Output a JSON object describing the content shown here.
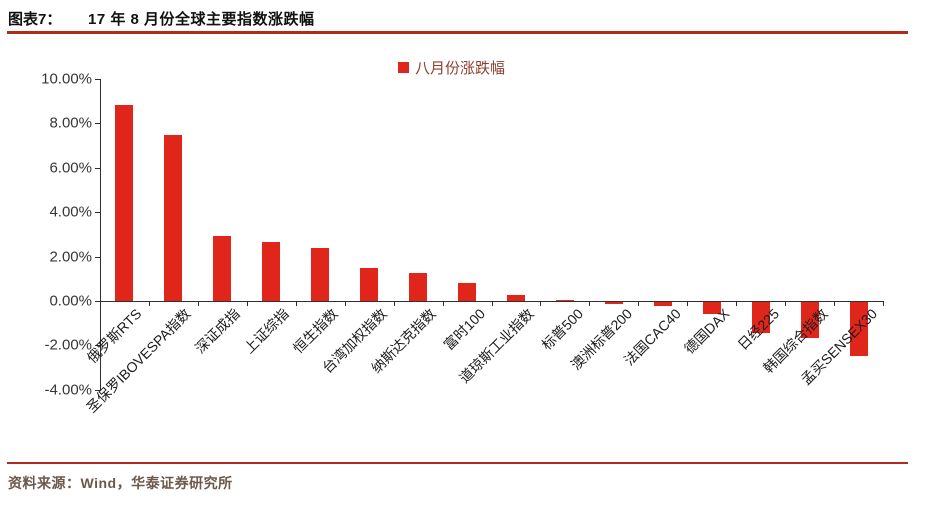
{
  "header": {
    "figure_label": "图表7：",
    "title": "17 年 8 月份全球主要指数涨跌幅"
  },
  "legend": {
    "label": "八月份涨跌幅"
  },
  "chart_data": {
    "type": "bar",
    "title": "17 年 8 月份全球主要指数涨跌幅",
    "series_name": "八月份涨跌幅",
    "unit": "percent",
    "categories": [
      "俄罗斯RTS",
      "圣保罗IBOVESPA指数",
      "深证成指",
      "上证综指",
      "恒生指数",
      "台湾加权指数",
      "纳斯达克指数",
      "富时100",
      "道琼斯工业指数",
      "标普500",
      "澳洲标普200",
      "法国CAC40",
      "德国DAX",
      "日经225",
      "韩国综合指数",
      "孟买SENSEX30"
    ],
    "values": [
      8.85,
      7.46,
      2.93,
      2.68,
      2.37,
      1.48,
      1.27,
      0.8,
      0.26,
      0.05,
      -0.11,
      -0.16,
      -0.52,
      -1.4,
      -1.64,
      -2.41
    ],
    "ylim": [
      -4,
      10
    ],
    "ytick_values": [
      10,
      8,
      6,
      4,
      2,
      0,
      -2,
      -4
    ],
    "ytick_labels": [
      "10.00%",
      "8.00%",
      "6.00%",
      "4.00%",
      "2.00%",
      "0.00%",
      "-2.00%",
      "-4.00%"
    ],
    "grid": false,
    "legend_position": "top-center",
    "bar_color": "#E0251B"
  },
  "footer": {
    "source": "资料来源：Wind，华泰证券研究所"
  },
  "colors": {
    "bar": "#E0251B",
    "rule": "#B02C1A",
    "axis": "#2F2F2F",
    "title_text": "#111111",
    "legend_text": "#8F3E30",
    "footer_text": "#6E584C"
  }
}
